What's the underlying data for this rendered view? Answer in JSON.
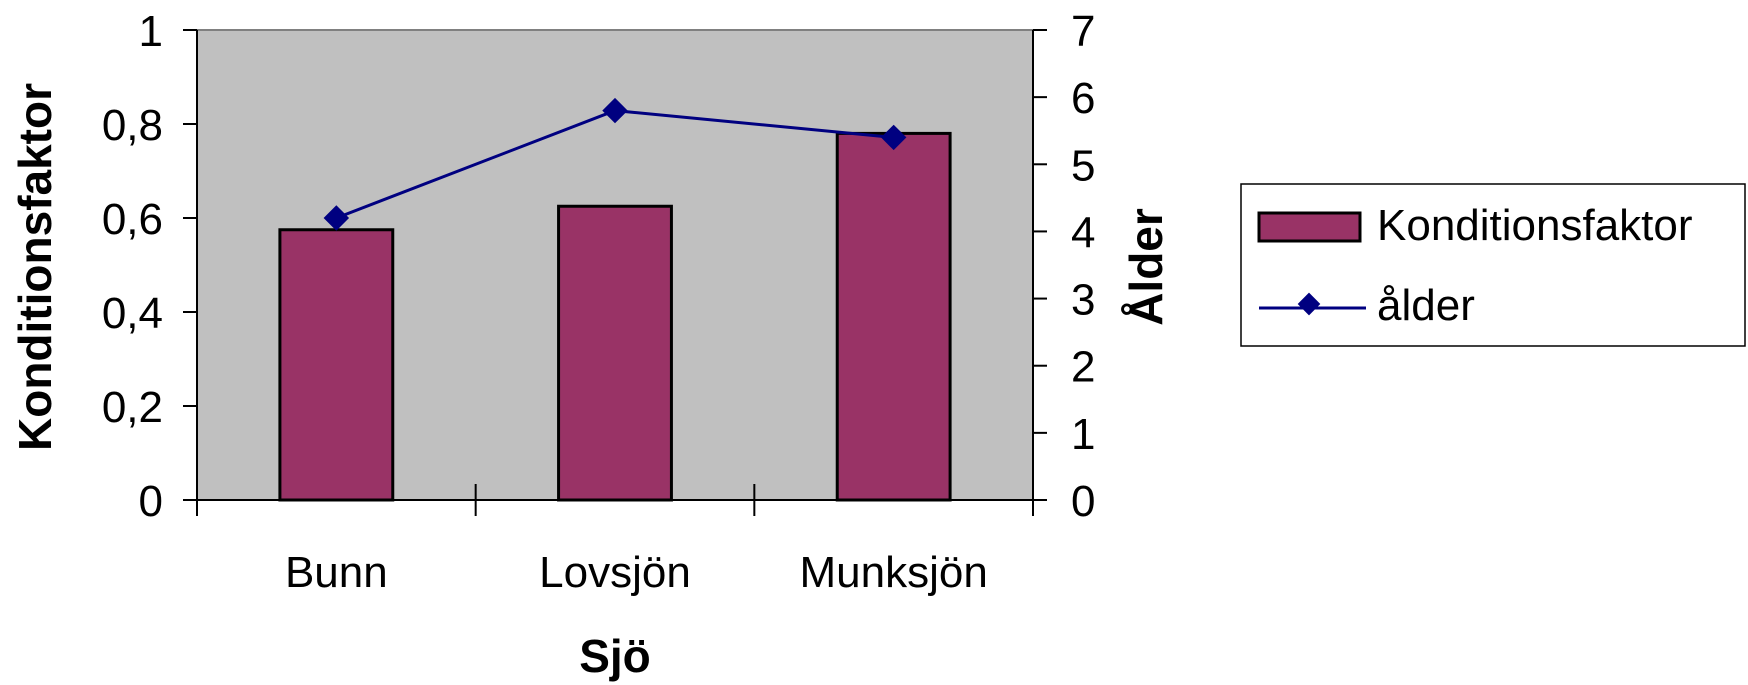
{
  "chart_data": {
    "type": "bar",
    "categories": [
      "Bunn",
      "Lovsjön",
      "Munksjön"
    ],
    "series": [
      {
        "name": "Konditionsfaktor",
        "kind": "bar",
        "axis": "left",
        "values": [
          0.575,
          0.625,
          0.78
        ],
        "color": "#993366"
      },
      {
        "name": "ålder",
        "kind": "line",
        "axis": "right",
        "values": [
          4.2,
          5.8,
          5.4
        ],
        "color": "#000080",
        "marker": "diamond"
      }
    ],
    "xlabel": "Sjö",
    "ylabel": "Konditionsfaktor",
    "y2label": "Ålder",
    "ylim": [
      0,
      1
    ],
    "y2lim": [
      0,
      7
    ],
    "yticks": [
      "0",
      "0,2",
      "0,4",
      "0,6",
      "0,8",
      "1"
    ],
    "y2ticks": [
      "0",
      "1",
      "2",
      "3",
      "4",
      "5",
      "6",
      "7"
    ],
    "plot_background": "#c0c0c0",
    "grid": false,
    "legend_position": "right"
  }
}
